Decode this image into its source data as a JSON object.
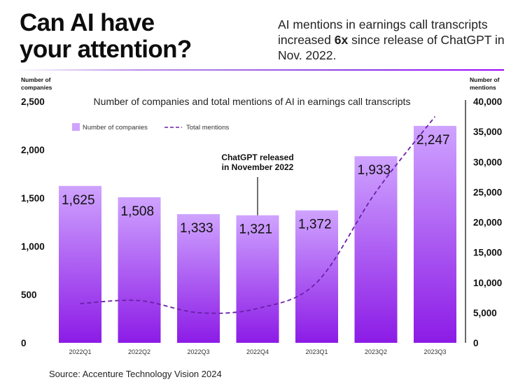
{
  "header": {
    "title_line1": "Can AI have",
    "title_line2": "your attention?",
    "subtitle_pre": "AI mentions in earnings call transcripts increased ",
    "subtitle_bold": "6x",
    "subtitle_post": " since release of ChatGPT in Nov. 2022."
  },
  "source": "Source: Accenture Technology Vision 2024",
  "colors": {
    "bar_top": "#cfa3ff",
    "bar_bottom": "#8c1be6",
    "line": "#6b1fa8",
    "text": "#111111"
  },
  "chart_data": {
    "type": "bar",
    "title": "Number of companies and total mentions of AI in earnings call transcripts",
    "categories": [
      "2022Q1",
      "2022Q2",
      "2022Q3",
      "2022Q4",
      "2023Q1",
      "2023Q2",
      "2023Q3"
    ],
    "series": [
      {
        "name": "Number of companies",
        "type": "bar",
        "axis": "left",
        "values": [
          1625,
          1508,
          1333,
          1321,
          1372,
          1933,
          2247
        ],
        "labels": [
          "1,625",
          "1,508",
          "1,333",
          "1,321",
          "1,372",
          "1,933",
          "2,247"
        ]
      },
      {
        "name": "Total mentions",
        "type": "line",
        "style": "dashed",
        "axis": "right",
        "values": [
          6500,
          7000,
          5000,
          5700,
          10000,
          25000,
          37500
        ]
      }
    ],
    "y_left": {
      "label_line1": "Number of",
      "label_line2": "companies",
      "range": [
        0,
        2500
      ],
      "ticks": [
        0,
        500,
        1000,
        1500,
        2000,
        2500
      ],
      "tick_labels": [
        "0",
        "500",
        "1,000",
        "1,500",
        "2,000",
        "2,500"
      ]
    },
    "y_right": {
      "label_line1": "Number of",
      "label_line2": "mentions",
      "range": [
        0,
        40000
      ],
      "ticks": [
        0,
        5000,
        10000,
        15000,
        20000,
        25000,
        30000,
        35000,
        40000
      ],
      "tick_labels": [
        "0",
        "5,000",
        "10,000",
        "15,000",
        "20,000",
        "25,000",
        "30,000",
        "35,000",
        "40,000"
      ]
    },
    "annotation": {
      "line1": "ChatGPT released",
      "line2": "in November 2022",
      "category": "2022Q4"
    },
    "legend": {
      "position": "top-left",
      "bar_label": "Number of companies",
      "line_label": "Total mentions"
    }
  }
}
